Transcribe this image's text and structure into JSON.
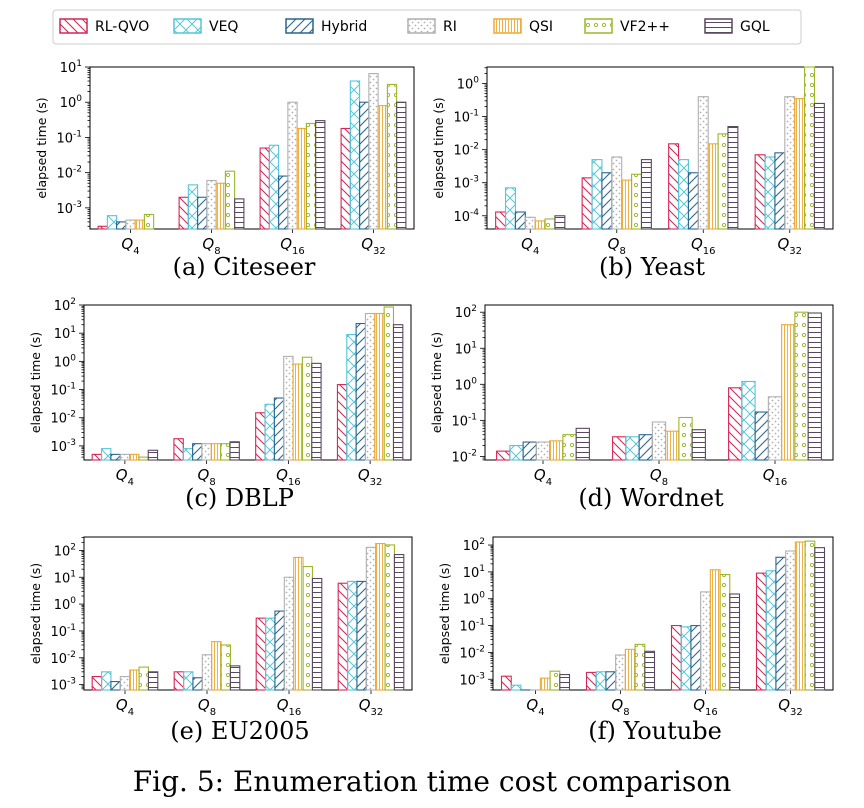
{
  "legend": {
    "series": [
      {
        "name": "RL-QVO",
        "color": "#d62755",
        "pattern": "diag-back"
      },
      {
        "name": "VEQ",
        "color": "#55c7d8",
        "pattern": "cross"
      },
      {
        "name": "Hybrid",
        "color": "#2b6690",
        "pattern": "diag-fwd"
      },
      {
        "name": "RI",
        "color": "#b0b0b0",
        "pattern": "dots"
      },
      {
        "name": "QSI",
        "color": "#f0a830",
        "pattern": "vlines"
      },
      {
        "name": "VF2++",
        "color": "#9ab82a",
        "pattern": "circles"
      },
      {
        "name": "GQL",
        "color": "#5a4860",
        "pattern": "hlines"
      }
    ]
  },
  "figure_caption": "Fig. 5: Enumeration time cost comparison",
  "chart_data": [
    {
      "type": "bar",
      "panel_label": "(a) Citeseer",
      "ylabel": "elapsed time (s)",
      "yscale": "log",
      "ylim_exp": [
        -3.6,
        1
      ],
      "ytick_labels": [
        {
          "exp": -3,
          "label": "10",
          "sup": "-3"
        },
        {
          "exp": -2,
          "label": "10",
          "sup": "-2"
        },
        {
          "exp": -1,
          "label": "10",
          "sup": "-1"
        },
        {
          "exp": 0,
          "label": "10",
          "sup": "0"
        },
        {
          "exp": 1,
          "label": "10",
          "sup": "1"
        }
      ],
      "categories": [
        {
          "main": "Q",
          "sub": "4"
        },
        {
          "main": "Q",
          "sub": "8"
        },
        {
          "main": "Q",
          "sub": "16"
        },
        {
          "main": "Q",
          "sub": "32"
        }
      ],
      "series": [
        {
          "name": "RL-QVO",
          "values": [
            0.0003,
            0.002,
            0.05,
            0.18
          ]
        },
        {
          "name": "VEQ",
          "values": [
            0.0006,
            0.0045,
            0.06,
            4
          ]
        },
        {
          "name": "Hybrid",
          "values": [
            0.0004,
            0.002,
            0.008,
            1.0
          ]
        },
        {
          "name": "RI",
          "values": [
            0.00045,
            0.006,
            1.0,
            6.5
          ]
        },
        {
          "name": "QSI",
          "values": [
            0.00045,
            0.005,
            0.18,
            0.8
          ]
        },
        {
          "name": "VF2++",
          "values": [
            0.00065,
            0.011,
            0.25,
            3.2
          ]
        },
        {
          "name": "GQL",
          "values": [
            0.00025,
            0.0018,
            0.3,
            1.0
          ]
        }
      ]
    },
    {
      "type": "bar",
      "panel_label": "(b) Yeast",
      "ylabel": "elapsed time (s)",
      "yscale": "log",
      "ylim_exp": [
        -4.4,
        0.5
      ],
      "ytick_labels": [
        {
          "exp": -4,
          "label": "10",
          "sup": "-4"
        },
        {
          "exp": -3,
          "label": "10",
          "sup": "-3"
        },
        {
          "exp": -2,
          "label": "10",
          "sup": "-2"
        },
        {
          "exp": -1,
          "label": "10",
          "sup": "-1"
        },
        {
          "exp": 0,
          "label": "10",
          "sup": "0"
        }
      ],
      "categories": [
        {
          "main": "Q",
          "sub": "4"
        },
        {
          "main": "Q",
          "sub": "8"
        },
        {
          "main": "Q",
          "sub": "16"
        },
        {
          "main": "Q",
          "sub": "32"
        }
      ],
      "series": [
        {
          "name": "RL-QVO",
          "values": [
            0.00013,
            0.0014,
            0.015,
            0.007
          ]
        },
        {
          "name": "VEQ",
          "values": [
            0.0007,
            0.005,
            0.005,
            0.006
          ]
        },
        {
          "name": "Hybrid",
          "values": [
            0.00013,
            0.002,
            0.002,
            0.008
          ]
        },
        {
          "name": "RI",
          "values": [
            9e-05,
            0.006,
            0.4,
            0.4
          ]
        },
        {
          "name": "QSI",
          "values": [
            7e-05,
            0.0012,
            0.015,
            0.35
          ]
        },
        {
          "name": "VF2++",
          "values": [
            8e-05,
            0.0018,
            0.03,
            3.2
          ]
        },
        {
          "name": "GQL",
          "values": [
            0.0001,
            0.005,
            0.05,
            0.25
          ]
        }
      ]
    },
    {
      "type": "bar",
      "panel_label": "(c) DBLP",
      "ylabel": "elapsed time (s)",
      "yscale": "log",
      "ylim_exp": [
        -3.5,
        2
      ],
      "ytick_labels": [
        {
          "exp": -3,
          "label": "10",
          "sup": "-3"
        },
        {
          "exp": -2,
          "label": "10",
          "sup": "-2"
        },
        {
          "exp": -1,
          "label": "10",
          "sup": "-1"
        },
        {
          "exp": 0,
          "label": "10",
          "sup": "0"
        },
        {
          "exp": 1,
          "label": "10",
          "sup": "1"
        },
        {
          "exp": 2,
          "label": "10",
          "sup": "2"
        }
      ],
      "categories": [
        {
          "main": "Q",
          "sub": "4"
        },
        {
          "main": "Q",
          "sub": "8"
        },
        {
          "main": "Q",
          "sub": "16"
        },
        {
          "main": "Q",
          "sub": "32"
        }
      ],
      "series": [
        {
          "name": "RL-QVO",
          "values": [
            0.0005,
            0.0018,
            0.015,
            0.15
          ]
        },
        {
          "name": "VEQ",
          "values": [
            0.0008,
            0.0008,
            0.03,
            9
          ]
        },
        {
          "name": "Hybrid",
          "values": [
            0.0005,
            0.0012,
            0.05,
            22
          ]
        },
        {
          "name": "RI",
          "values": [
            0.0005,
            0.0012,
            1.5,
            50
          ]
        },
        {
          "name": "QSI",
          "values": [
            0.0005,
            0.0012,
            0.8,
            50
          ]
        },
        {
          "name": "VF2++",
          "values": [
            0.0004,
            0.0012,
            1.4,
            85
          ]
        },
        {
          "name": "GQL",
          "values": [
            0.0007,
            0.0014,
            0.85,
            20
          ]
        }
      ]
    },
    {
      "type": "bar",
      "panel_label": "(d) Wordnet",
      "ylabel": "elapsed time (s)",
      "yscale": "log",
      "ylim_exp": [
        -2.1,
        2.2
      ],
      "ytick_labels": [
        {
          "exp": -2,
          "label": "10",
          "sup": "-2"
        },
        {
          "exp": -1,
          "label": "10",
          "sup": "-1"
        },
        {
          "exp": 0,
          "label": "10",
          "sup": "0"
        },
        {
          "exp": 1,
          "label": "10",
          "sup": "1"
        },
        {
          "exp": 2,
          "label": "10",
          "sup": "2"
        }
      ],
      "categories": [
        {
          "main": "Q",
          "sub": "4"
        },
        {
          "main": "Q",
          "sub": "8"
        },
        {
          "main": "Q",
          "sub": "16"
        }
      ],
      "series": [
        {
          "name": "RL-QVO",
          "values": [
            0.014,
            0.035,
            0.8
          ]
        },
        {
          "name": "VEQ",
          "values": [
            0.02,
            0.035,
            1.2
          ]
        },
        {
          "name": "Hybrid",
          "values": [
            0.025,
            0.04,
            0.17
          ]
        },
        {
          "name": "RI",
          "values": [
            0.025,
            0.09,
            0.45
          ]
        },
        {
          "name": "QSI",
          "values": [
            0.027,
            0.05,
            45
          ]
        },
        {
          "name": "VF2++",
          "values": [
            0.04,
            0.12,
            100
          ]
        },
        {
          "name": "GQL",
          "values": [
            0.06,
            0.055,
            95
          ]
        }
      ]
    },
    {
      "type": "bar",
      "panel_label": "(e) EU2005",
      "ylabel": "elapsed time (s)",
      "yscale": "log",
      "ylim_exp": [
        -3.2,
        2.5
      ],
      "ytick_labels": [
        {
          "exp": -3,
          "label": "10",
          "sup": "-3"
        },
        {
          "exp": -2,
          "label": "10",
          "sup": "-2"
        },
        {
          "exp": -1,
          "label": "10",
          "sup": "-1"
        },
        {
          "exp": 0,
          "label": "10",
          "sup": "0"
        },
        {
          "exp": 1,
          "label": "10",
          "sup": "1"
        },
        {
          "exp": 2,
          "label": "10",
          "sup": "2"
        }
      ],
      "categories": [
        {
          "main": "Q",
          "sub": "4"
        },
        {
          "main": "Q",
          "sub": "8"
        },
        {
          "main": "Q",
          "sub": "16"
        },
        {
          "main": "Q",
          "sub": "32"
        }
      ],
      "series": [
        {
          "name": "RL-QVO",
          "values": [
            0.002,
            0.003,
            0.3,
            6
          ]
        },
        {
          "name": "VEQ",
          "values": [
            0.003,
            0.003,
            0.3,
            7
          ]
        },
        {
          "name": "Hybrid",
          "values": [
            0.0013,
            0.0018,
            0.55,
            7
          ]
        },
        {
          "name": "RI",
          "values": [
            0.002,
            0.013,
            10,
            130
          ]
        },
        {
          "name": "QSI",
          "values": [
            0.0035,
            0.04,
            55,
            180
          ]
        },
        {
          "name": "VF2++",
          "values": [
            0.0045,
            0.03,
            25,
            160
          ]
        },
        {
          "name": "GQL",
          "values": [
            0.003,
            0.005,
            9,
            70
          ]
        }
      ]
    },
    {
      "type": "bar",
      "panel_label": "(f) Youtube",
      "ylabel": "elapsed time (s)",
      "yscale": "log",
      "ylim_exp": [
        -3.4,
        2.3
      ],
      "ytick_labels": [
        {
          "exp": -3,
          "label": "10",
          "sup": "-3"
        },
        {
          "exp": -2,
          "label": "10",
          "sup": "-2"
        },
        {
          "exp": -1,
          "label": "10",
          "sup": "-1"
        },
        {
          "exp": 0,
          "label": "10",
          "sup": "0"
        },
        {
          "exp": 1,
          "label": "10",
          "sup": "1"
        },
        {
          "exp": 2,
          "label": "10",
          "sup": "2"
        }
      ],
      "categories": [
        {
          "main": "Q",
          "sub": "4"
        },
        {
          "main": "Q",
          "sub": "8"
        },
        {
          "main": "Q",
          "sub": "16"
        },
        {
          "main": "Q",
          "sub": "32"
        }
      ],
      "series": [
        {
          "name": "RL-QVO",
          "values": [
            0.0013,
            0.0018,
            0.1,
            9
          ]
        },
        {
          "name": "VEQ",
          "values": [
            0.0006,
            0.0019,
            0.09,
            11
          ]
        },
        {
          "name": "Hybrid",
          "values": [
            0.0004,
            0.0019,
            0.1,
            35
          ]
        },
        {
          "name": "RI",
          "values": [
            0.0004,
            0.008,
            1.8,
            60
          ]
        },
        {
          "name": "QSI",
          "values": [
            0.0011,
            0.013,
            12,
            130
          ]
        },
        {
          "name": "VF2++",
          "values": [
            0.002,
            0.02,
            8,
            140
          ]
        },
        {
          "name": "GQL",
          "values": [
            0.0015,
            0.011,
            1.5,
            80
          ]
        }
      ]
    }
  ]
}
